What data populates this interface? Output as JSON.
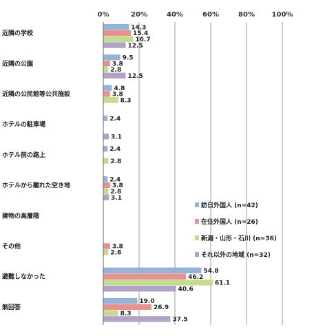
{
  "chart_data": {
    "type": "bar",
    "orientation": "horizontal",
    "xlim": [
      0,
      100
    ],
    "ticks": [
      "0%",
      "20%",
      "40%",
      "60%",
      "80%",
      "100%"
    ],
    "tick_values": [
      0,
      20,
      40,
      60,
      80,
      100
    ],
    "grid": true,
    "legend_position": "right",
    "categories": [
      "近隣の学校",
      "近隣の公園",
      "近隣の公民館等公共施設",
      "ホテルの駐車場",
      "ホテル前の路上",
      "ホテルから離れた空き地",
      "建物の高層階",
      "その他",
      "避難しなかった",
      "無回答"
    ],
    "series": [
      {
        "name": "訪日外国人 (n=42)",
        "color": "#95b3d7",
        "values": [
          14.3,
          9.5,
          4.8,
          2.4,
          2.4,
          2.4,
          null,
          null,
          54.8,
          19.0
        ],
        "labels": [
          "14.3",
          "9.5",
          "4.8",
          "2.4",
          "2.4",
          "2.4",
          "",
          "",
          "54.8",
          "19.0"
        ]
      },
      {
        "name": "在住外国人 (n=26)",
        "color": "#e6928f",
        "values": [
          15.4,
          3.8,
          3.8,
          null,
          null,
          3.8,
          null,
          3.8,
          46.2,
          26.9
        ],
        "labels": [
          "15.4",
          "3.8",
          "3.8",
          "",
          "",
          "3.8",
          "",
          "3.8",
          "46.2",
          "26.9"
        ]
      },
      {
        "name": "新潟・山形・石川 (n=36)",
        "color": "#c4dc8f",
        "values": [
          16.7,
          2.8,
          8.3,
          null,
          2.8,
          2.8,
          null,
          2.8,
          61.1,
          8.3
        ],
        "labels": [
          "16.7",
          "2.8",
          "8.3",
          "",
          "2.8",
          "2.8",
          "",
          "2.8",
          "61.1",
          "8.3"
        ]
      },
      {
        "name": "それ以外の地域 (n=32)",
        "color": "#b3a2c7",
        "values": [
          12.5,
          12.5,
          null,
          3.1,
          null,
          3.1,
          null,
          null,
          40.6,
          37.5
        ],
        "labels": [
          "12.5",
          "12.5",
          "",
          "3.1",
          "",
          "3.1",
          "",
          "",
          "40.6",
          "37.5"
        ]
      }
    ]
  }
}
